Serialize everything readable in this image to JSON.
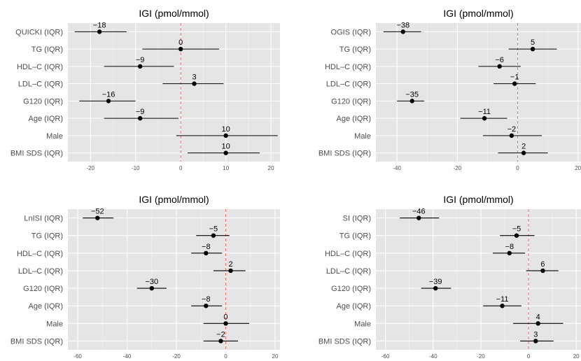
{
  "chart_data": [
    {
      "type": "forest",
      "title": "IGI (pmol/mmol)",
      "xlim": [
        -25,
        22
      ],
      "xticks": [
        -20,
        -10,
        0,
        10,
        20
      ],
      "reference_line": 0,
      "categories": [
        "QUICKI (IQR)",
        "TG (IQR)",
        "HDL–C (IQR)",
        "LDL–C (IQR)",
        "G120 (IQR)",
        "Age (IQR)",
        "Male",
        "BMI SDS (IQR)"
      ],
      "estimates": [
        -18,
        0,
        -9,
        3,
        -16,
        -9,
        10,
        10
      ],
      "ci_low": [
        -23.5,
        -8.5,
        -17,
        -4,
        -22.5,
        -17,
        -1,
        1.5
      ],
      "ci_high": [
        -12,
        8.5,
        -1.5,
        9.5,
        -10,
        -0.5,
        21.5,
        17.5
      ],
      "labels": [
        "−18",
        "0",
        "−9",
        "3",
        "−16",
        "−9",
        "10",
        "10"
      ]
    },
    {
      "type": "forest",
      "title": "IGI (pmol/mmol)",
      "xlim": [
        -47,
        21
      ],
      "xticks": [
        -40,
        -20,
        0,
        20
      ],
      "reference_line": 0,
      "categories": [
        "OGIS (IQR)",
        "TG (IQR)",
        "HDL–C (IQR)",
        "LDL–C (IQR)",
        "G120 (IQR)",
        "Age (IQR)",
        "Male",
        "BMI SDS (IQR)"
      ],
      "estimates": [
        -38,
        5,
        -6,
        -1,
        -35,
        -11,
        -2,
        2
      ],
      "ci_low": [
        -44.5,
        -3,
        -13,
        -8,
        -40,
        -19,
        -11.5,
        -6.5
      ],
      "ci_high": [
        -32,
        13,
        1,
        6,
        -31,
        -3.5,
        8,
        10
      ],
      "labels": [
        "−38",
        "5",
        "−6",
        "−1",
        "−35",
        "−11",
        "−2",
        "2"
      ]
    },
    {
      "type": "forest",
      "title": "IGI (pmol/mmol)",
      "xlim": [
        -64,
        22
      ],
      "xticks": [
        -60,
        -40,
        -20,
        0,
        20
      ],
      "reference_line": 0,
      "categories": [
        "LnISI (IQR)",
        "TG (IQR)",
        "HDL–C (IQR)",
        "LDL–C (IQR)",
        "G120 (IQR)",
        "Age (IQR)",
        "Male",
        "BMI SDS (IQR)"
      ],
      "estimates": [
        -52,
        -5,
        -8,
        2,
        -30,
        -8,
        0,
        -2
      ],
      "ci_low": [
        -58,
        -12,
        -14,
        -5,
        -36,
        -14,
        -9,
        -9
      ],
      "ci_high": [
        -45.5,
        1.5,
        -1.5,
        8,
        -24,
        -1.5,
        9.5,
        5
      ],
      "labels": [
        "−52",
        "−5",
        "−8",
        "2",
        "−30",
        "−8",
        "0",
        "−2"
      ]
    },
    {
      "type": "forest",
      "title": "IGI (pmol/mmol)",
      "xlim": [
        -64,
        22
      ],
      "xticks": [
        -60,
        -40,
        -20,
        0,
        20
      ],
      "reference_line": 0,
      "categories": [
        "SI (IQR)",
        "TG (IQR)",
        "HDL–C (IQR)",
        "LDL–C (IQR)",
        "G120 (IQR)",
        "Age (IQR)",
        "Male",
        "BMI SDS (IQR)"
      ],
      "estimates": [
        -46,
        -5,
        -8,
        6,
        -39,
        -11,
        4,
        3
      ],
      "ci_low": [
        -54,
        -12,
        -15,
        -1,
        -45,
        -19,
        -6.5,
        -3.5
      ],
      "ci_high": [
        -37.5,
        2.5,
        -1.5,
        12.5,
        -32.5,
        -3,
        14.5,
        10.5
      ],
      "labels": [
        "−46",
        "−5",
        "−8",
        "6",
        "−39",
        "−11",
        "4",
        "3"
      ]
    }
  ],
  "colors": {
    "panel_background": "#e5e5e5",
    "grid": "#ffffff",
    "reference_line": "#e8736b",
    "point": "#000000"
  }
}
